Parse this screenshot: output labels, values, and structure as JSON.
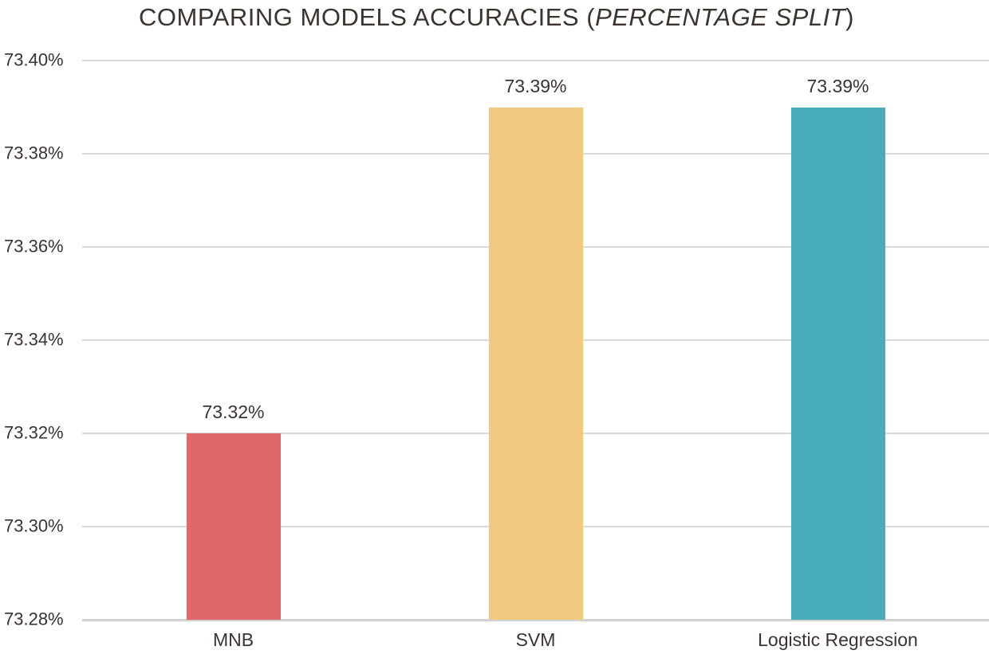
{
  "title": {
    "main": "COMPARING MODELS ACCURACIES (",
    "italic": "PERCENTAGE SPLIT",
    "close": ")"
  },
  "chart_data": {
    "type": "bar",
    "title": "COMPARING MODELS ACCURACIES (PERCENTAGE SPLIT)",
    "categories": [
      "MNB",
      "SVM",
      "Logistic Regression"
    ],
    "values": [
      73.32,
      73.39,
      73.39
    ],
    "data_labels": [
      "73.32%",
      "73.39%",
      "73.39%"
    ],
    "bar_colors": [
      "#df686b",
      "#efca80",
      "#48acba"
    ],
    "xlabel": "",
    "ylabel": "",
    "ylim": [
      73.28,
      73.4
    ],
    "ytick_step": 0.02,
    "yticks": [
      "73.40%",
      "73.38%",
      "73.36%",
      "73.34%",
      "73.32%",
      "73.30%",
      "73.28%"
    ],
    "ytick_values": [
      73.4,
      73.38,
      73.36,
      73.34,
      73.32,
      73.3,
      73.28
    ],
    "grid": true,
    "legend": "none",
    "gridline_color": "#dadada",
    "axis_line_color": "#d2d2d2",
    "text_color": "#3b3330",
    "background": "#ffffff"
  }
}
